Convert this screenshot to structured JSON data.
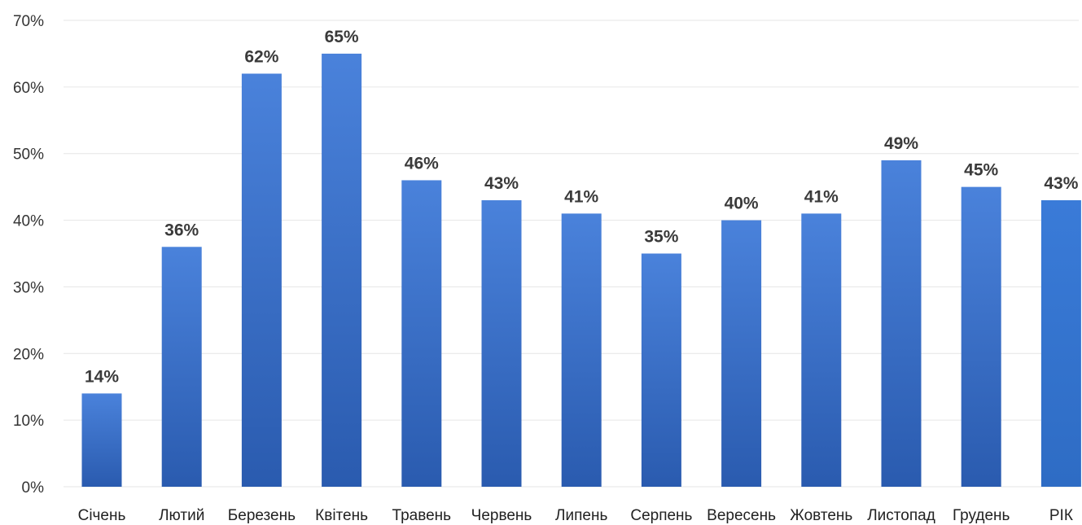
{
  "chart_data": {
    "type": "bar",
    "categories": [
      "Січень",
      "Лютий",
      "Березень",
      "Квітень",
      "Травень",
      "Червень",
      "Липень",
      "Серпень",
      "Вересень",
      "Жовтень",
      "Листопад",
      "Грудень",
      "РІК"
    ],
    "values": [
      14,
      36,
      62,
      65,
      46,
      43,
      41,
      35,
      40,
      41,
      49,
      45,
      43
    ],
    "data_labels": [
      "14%",
      "36%",
      "62%",
      "65%",
      "46%",
      "43%",
      "41%",
      "35%",
      "40%",
      "41%",
      "49%",
      "45%",
      "43%"
    ],
    "ylim": [
      0,
      70
    ],
    "yticks": [
      0,
      10,
      20,
      30,
      40,
      50,
      60,
      70
    ],
    "ytick_labels": [
      "0%",
      "10%",
      "20%",
      "30%",
      "40%",
      "50%",
      "60%",
      "70%"
    ],
    "title": "",
    "xlabel": "",
    "ylabel": "",
    "grid": true,
    "legend": "none",
    "colors": {
      "bar_top": "#4A82DB",
      "bar_bottom": "#2A5BAF",
      "highlight_top": "#3A7BD8",
      "highlight_bottom": "#2E6CC4",
      "grid": "#E6E6E6"
    }
  }
}
